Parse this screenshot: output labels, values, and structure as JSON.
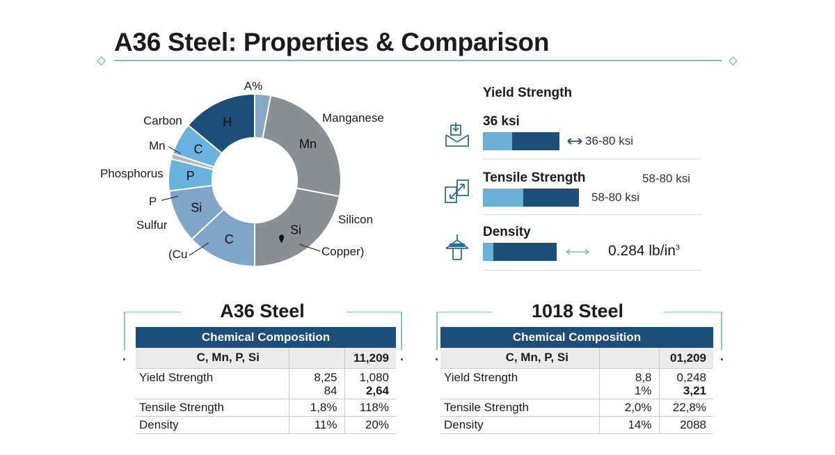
{
  "title": "A36 Steel: Properties & Comparison",
  "chart_data": [
    {
      "type": "pie",
      "variant": "donut",
      "title": "",
      "slices": [
        {
          "label": "A%",
          "inner_label": "",
          "value": 3,
          "color": "#87a9c4"
        },
        {
          "label": "Manganese",
          "inner_label": "Mn",
          "value": 25,
          "color": "#8a8f94"
        },
        {
          "label": "Silicon",
          "inner_label": "Si",
          "value": 22,
          "color": "#8a8f94"
        },
        {
          "label": "Copper)",
          "inner_label": "",
          "value": 0,
          "color": "#8a8f94"
        },
        {
          "label": "(Cu",
          "inner_label": "C",
          "value": 13,
          "color": "#7fa6c9"
        },
        {
          "label": "Sulfur",
          "inner_label": "Si",
          "value": 10,
          "color": "#7fa6c9"
        },
        {
          "label": "P",
          "inner_label": "",
          "value": 0,
          "color": "#6ab3e0"
        },
        {
          "label": "Phosphorus",
          "inner_label": "P",
          "value": 6,
          "color": "#6ab3e0"
        },
        {
          "label": "Mn",
          "inner_label": "",
          "value": 1,
          "color": "#b4b8bc"
        },
        {
          "label": "Carbon",
          "inner_label": "C",
          "value": 6,
          "color": "#6ab3e0"
        },
        {
          "label": "",
          "inner_label": "H",
          "value": 14,
          "color": "#1d4e79"
        }
      ]
    },
    {
      "type": "bar",
      "orientation": "horizontal",
      "title": "Yield Strength",
      "series": [
        {
          "name": "Yield Strength",
          "value_label": "36 ksi",
          "range_label": "36-80 ksi",
          "light_fraction": 0.38
        },
        {
          "name": "Tensile Strength",
          "value_label": "58-80 ksi",
          "range_label": "58-80 ksi",
          "light_fraction": 0.42
        },
        {
          "name": "Density",
          "value_label": "0.284 lb/in",
          "value_sup": "3",
          "light_fraction": 0.14
        }
      ]
    }
  ],
  "tables": [
    {
      "title": "A36 Steel",
      "header": "Chemical Composition",
      "sub_row": [
        "C, Mn, P, Si",
        "",
        "11,209"
      ],
      "rows": [
        {
          "label": "Yield Strength",
          "col1": [
            "8,25",
            "84"
          ],
          "col2": [
            "1,080",
            "2,64"
          ]
        },
        {
          "label": "Tensile Strength",
          "col1": [
            "1,8%"
          ],
          "col2": [
            "118%"
          ]
        },
        {
          "label": "Density",
          "col1": [
            "11%"
          ],
          "col2": [
            "20%"
          ]
        }
      ]
    },
    {
      "title": "1018 Steel",
      "header": "Chemical Composition",
      "sub_row": [
        "C, Mn, P, Si",
        "",
        "01,209"
      ],
      "rows": [
        {
          "label": "Yield Strength",
          "col1": [
            "8,8",
            "1%"
          ],
          "col2": [
            "0,248",
            "3,21"
          ]
        },
        {
          "label": "Tensile Strength",
          "col1": [
            "2,0%"
          ],
          "col2": [
            "22,8%"
          ]
        },
        {
          "label": "Density",
          "col1": [
            "14%"
          ],
          "col2": [
            "2088"
          ]
        }
      ]
    }
  ],
  "colors": {
    "accent": "#1d4e79",
    "light_blue": "#6bafd8",
    "rule": "#7fb7c9"
  }
}
